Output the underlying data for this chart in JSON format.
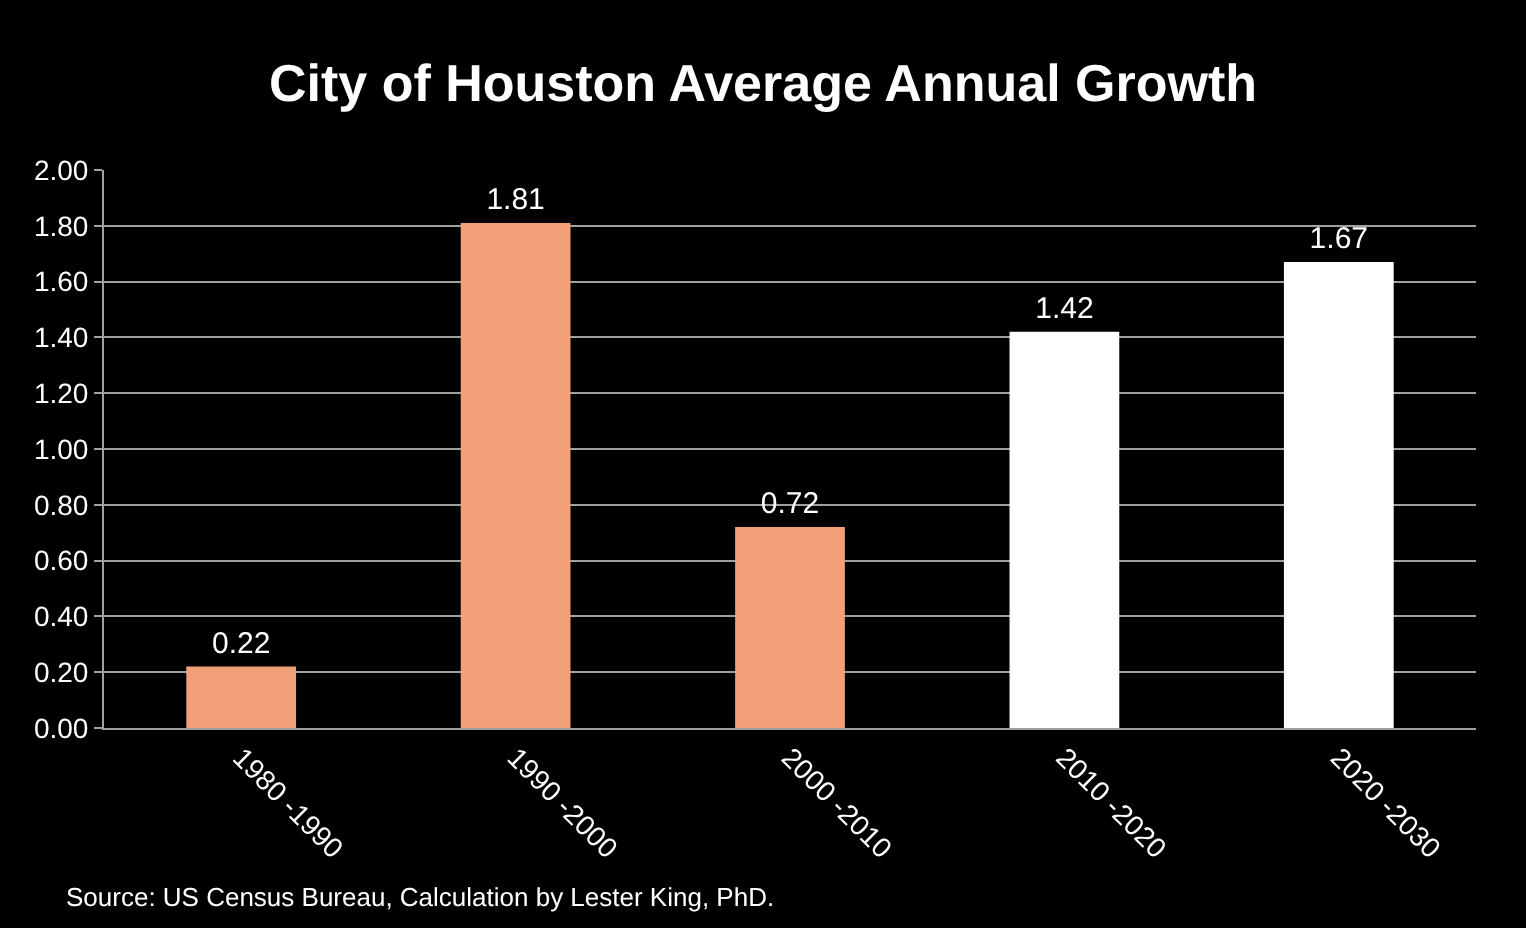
{
  "chart_data": {
    "type": "bar",
    "title": "City of Houston Average Annual Growth",
    "categories": [
      "1980 -1990",
      "1990 -2000",
      "2000 -2010",
      "2010 -2020",
      "2020 -2030"
    ],
    "values": [
      0.22,
      1.81,
      0.72,
      1.42,
      1.67
    ],
    "colors": [
      "#f2a07a",
      "#f2a07a",
      "#f2a07a",
      "#ffffff",
      "#ffffff"
    ],
    "data_labels": true,
    "ylim": [
      0,
      2
    ],
    "yticks": [
      "0.00",
      "0.20",
      "0.40",
      "0.60",
      "0.80",
      "1.00",
      "1.20",
      "1.40",
      "1.60",
      "1.80",
      "2.00"
    ],
    "grid": "y",
    "legend": false,
    "annotations": [
      "Source: US Census Bureau, Calculation by Lester King, PhD."
    ]
  }
}
